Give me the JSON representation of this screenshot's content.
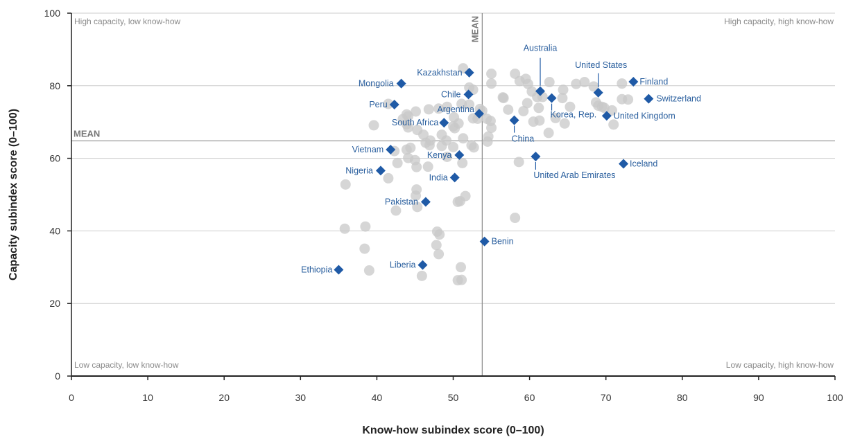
{
  "chart_data": {
    "type": "scatter",
    "xlabel": "Know-how subindex score (0–100)",
    "ylabel": "Capacity subindex score (0–100)",
    "xlim": [
      0,
      100
    ],
    "ylim": [
      0,
      100
    ],
    "x_ticks": [
      0,
      10,
      20,
      30,
      40,
      50,
      60,
      70,
      80,
      90,
      100
    ],
    "y_ticks": [
      0,
      20,
      40,
      60,
      80,
      100
    ],
    "grid": true,
    "grid_axis": "y",
    "quadrant_labels": {
      "top_left": "High capacity, low know-how",
      "top_right": "High capacity, high know-how",
      "bottom_left": "Low capacity, low know-how",
      "bottom_right": "Low capacity, high know-how"
    },
    "mean_lines": {
      "x": 53.8,
      "y": 64.8,
      "x_label": "MEAN",
      "y_label": "MEAN"
    },
    "colors": {
      "highlight": "#1f5aa6",
      "label": "#2a5f9e",
      "background_points": "#c8c8c8",
      "mean_line": "#8a8a8a",
      "grid": "#cccccc",
      "axis": "#222222"
    },
    "highlighted": [
      {
        "name": "Kazakhstan",
        "x": 52.1,
        "y": 83.6
      },
      {
        "name": "Mongolia",
        "x": 43.2,
        "y": 80.6
      },
      {
        "name": "Chile",
        "x": 52.0,
        "y": 77.6
      },
      {
        "name": "Peru",
        "x": 42.3,
        "y": 74.8
      },
      {
        "name": "Argentina",
        "x": 53.4,
        "y": 72.3
      },
      {
        "name": "South Africa",
        "x": 48.8,
        "y": 69.8
      },
      {
        "name": "Vietnam",
        "x": 41.8,
        "y": 62.4
      },
      {
        "name": "Kenya",
        "x": 50.8,
        "y": 60.9
      },
      {
        "name": "Nigeria",
        "x": 40.5,
        "y": 56.6
      },
      {
        "name": "India",
        "x": 50.2,
        "y": 54.7
      },
      {
        "name": "Pakistan",
        "x": 46.4,
        "y": 48.0
      },
      {
        "name": "Benin",
        "x": 54.1,
        "y": 37.1
      },
      {
        "name": "Liberia",
        "x": 46.0,
        "y": 30.6
      },
      {
        "name": "Ethiopia",
        "x": 35.0,
        "y": 29.3
      },
      {
        "name": "Australia",
        "x": 61.4,
        "y": 78.5
      },
      {
        "name": "Korea, Rep.",
        "x": 62.9,
        "y": 76.6
      },
      {
        "name": "United States",
        "x": 69.0,
        "y": 78.1
      },
      {
        "name": "Finland",
        "x": 73.6,
        "y": 81.1
      },
      {
        "name": "Switzerland",
        "x": 75.6,
        "y": 76.4
      },
      {
        "name": "United Kingdom",
        "x": 70.1,
        "y": 71.7
      },
      {
        "name": "China",
        "x": 58.0,
        "y": 70.5
      },
      {
        "name": "United Arab Emirates",
        "x": 60.8,
        "y": 60.5
      },
      {
        "name": "Iceland",
        "x": 72.3,
        "y": 58.5
      }
    ],
    "background_points": [
      [
        51.3,
        84.8
      ],
      [
        55.0,
        83.3
      ],
      [
        58.1,
        83.3
      ],
      [
        59.5,
        81.9
      ],
      [
        58.7,
        81.3
      ],
      [
        62.6,
        81.0
      ],
      [
        55.0,
        80.6
      ],
      [
        59.8,
        80.5
      ],
      [
        64.4,
        78.9
      ],
      [
        66.1,
        80.5
      ],
      [
        67.2,
        81.0
      ],
      [
        68.4,
        79.8
      ],
      [
        72.1,
        80.6
      ],
      [
        72.1,
        76.3
      ],
      [
        72.9,
        76.2
      ],
      [
        60.3,
        78.4
      ],
      [
        61.0,
        76.9
      ],
      [
        61.7,
        76.9
      ],
      [
        52.6,
        78.9
      ],
      [
        52.1,
        79.5
      ],
      [
        56.5,
        76.8
      ],
      [
        64.3,
        76.6
      ],
      [
        68.7,
        75.4
      ],
      [
        69.0,
        74.5
      ],
      [
        69.5,
        74.2
      ],
      [
        69.8,
        73.9
      ],
      [
        70.8,
        73.2
      ],
      [
        71.0,
        69.3
      ],
      [
        65.3,
        74.2
      ],
      [
        59.7,
        75.2
      ],
      [
        57.2,
        73.4
      ],
      [
        61.2,
        73.9
      ],
      [
        61.3,
        70.4
      ],
      [
        63.4,
        71.1
      ],
      [
        64.6,
        69.6
      ],
      [
        62.5,
        67.0
      ],
      [
        59.2,
        73.0
      ],
      [
        60.5,
        70.1
      ],
      [
        56.6,
        76.6
      ],
      [
        53.5,
        73.6
      ],
      [
        54.4,
        70.9
      ],
      [
        53.8,
        73.1
      ],
      [
        54.9,
        70.3
      ],
      [
        53.2,
        70.9
      ],
      [
        52.1,
        74.8
      ],
      [
        55.0,
        68.4
      ],
      [
        54.6,
        66.0
      ],
      [
        54.5,
        64.6
      ],
      [
        51.1,
        75.0
      ],
      [
        49.2,
        74.2
      ],
      [
        48.1,
        73.7
      ],
      [
        45.1,
        72.9
      ],
      [
        46.8,
        73.5
      ],
      [
        44.1,
        71.6
      ],
      [
        41.5,
        75.0
      ],
      [
        43.4,
        70.8
      ],
      [
        43.9,
        69.4
      ],
      [
        43.9,
        72.1
      ],
      [
        39.6,
        69.1
      ],
      [
        50.7,
        69.6
      ],
      [
        50.2,
        68.3
      ],
      [
        50.0,
        68.8
      ],
      [
        48.5,
        66.5
      ],
      [
        46.1,
        66.5
      ],
      [
        45.3,
        67.8
      ],
      [
        44.1,
        68.5
      ],
      [
        51.3,
        65.5
      ],
      [
        49.1,
        64.9
      ],
      [
        52.4,
        63.6
      ],
      [
        52.7,
        63.0
      ],
      [
        50.0,
        63.1
      ],
      [
        48.5,
        63.4
      ],
      [
        47.0,
        64.9
      ],
      [
        46.4,
        64.3
      ],
      [
        46.9,
        63.6
      ],
      [
        44.4,
        62.9
      ],
      [
        43.9,
        62.4
      ],
      [
        42.3,
        62.0
      ],
      [
        44.1,
        60.1
      ],
      [
        49.2,
        60.4
      ],
      [
        51.2,
        58.7
      ],
      [
        46.7,
        57.7
      ],
      [
        45.2,
        57.6
      ],
      [
        42.7,
        58.7
      ],
      [
        45.0,
        59.5
      ],
      [
        41.5,
        54.5
      ],
      [
        35.9,
        52.8
      ],
      [
        58.6,
        59.0
      ],
      [
        45.2,
        51.4
      ],
      [
        45.1,
        49.7
      ],
      [
        45.3,
        46.6
      ],
      [
        42.5,
        45.6
      ],
      [
        50.6,
        48.0
      ],
      [
        50.9,
        48.2
      ],
      [
        51.6,
        49.6
      ],
      [
        35.8,
        40.6
      ],
      [
        38.5,
        41.2
      ],
      [
        47.9,
        39.8
      ],
      [
        48.2,
        39.0
      ],
      [
        47.8,
        36.1
      ],
      [
        48.1,
        33.6
      ],
      [
        38.4,
        35.1
      ],
      [
        58.1,
        43.6
      ],
      [
        39.0,
        29.1
      ],
      [
        51.0,
        30.0
      ],
      [
        45.9,
        27.6
      ],
      [
        50.6,
        26.4
      ],
      [
        51.1,
        26.5
      ],
      [
        50.1,
        71.3
      ],
      [
        52.6,
        71.0
      ]
    ]
  }
}
